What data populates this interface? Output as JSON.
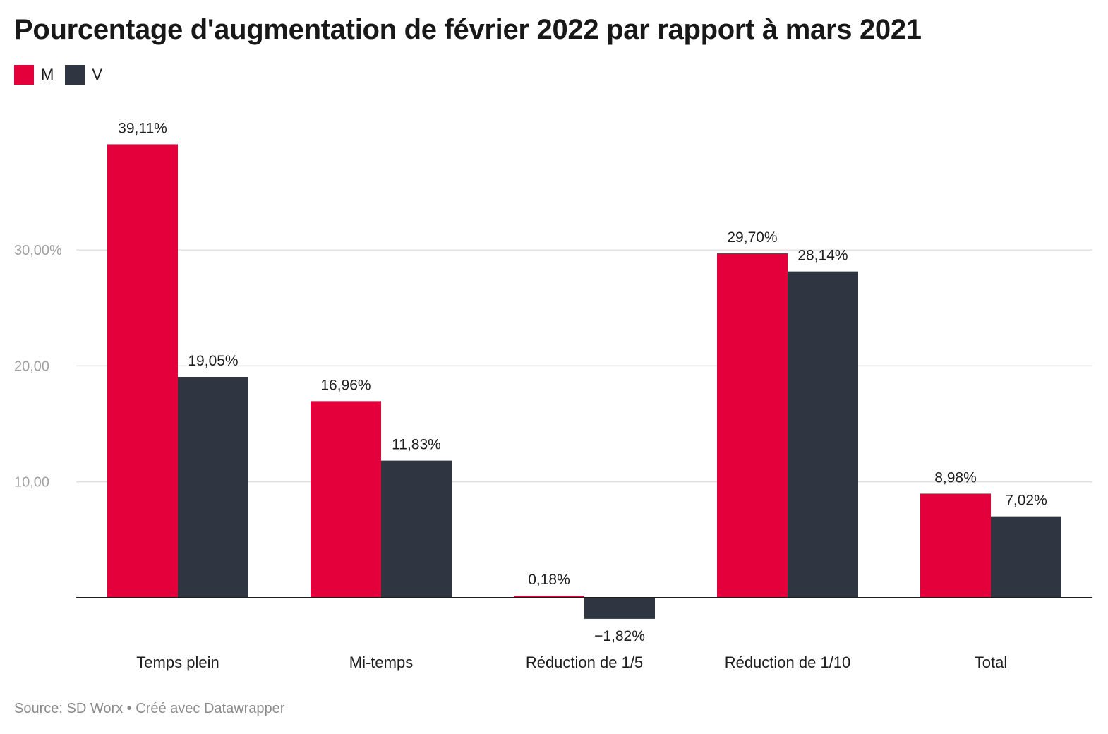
{
  "title": "Pourcentage d'augmentation de février 2022 par rapport à mars 2021",
  "source": "Source: SD Worx • Créé avec Datawrapper",
  "colors": {
    "M": "#e4003b",
    "V": "#303641",
    "grid": "#e3e3e3",
    "axis": "#1d1d1d",
    "tick": "#a0a0a0"
  },
  "chart_data": {
    "type": "bar",
    "categories": [
      "Temps plein",
      "Mi-temps",
      "Réduction de 1/5",
      "Réduction de 1/10",
      "Total"
    ],
    "series": [
      {
        "name": "M",
        "values": [
          39.11,
          16.96,
          0.18,
          29.7,
          8.98
        ],
        "labels": [
          "39,11%",
          "16,96%",
          "0,18%",
          "29,70%",
          "8,98%"
        ]
      },
      {
        "name": "V",
        "values": [
          19.05,
          11.83,
          -1.82,
          28.14,
          7.02
        ],
        "labels": [
          "19,05%",
          "11,83%",
          "−1,82%",
          "28,14%",
          "7,02%"
        ]
      }
    ],
    "yticks": [
      10,
      20,
      30
    ],
    "ytick_labels": [
      "10,00",
      "20,00",
      "30,00%"
    ],
    "ylim": [
      -1.82,
      39.11
    ],
    "grid": true,
    "legend_position": "top-left"
  }
}
